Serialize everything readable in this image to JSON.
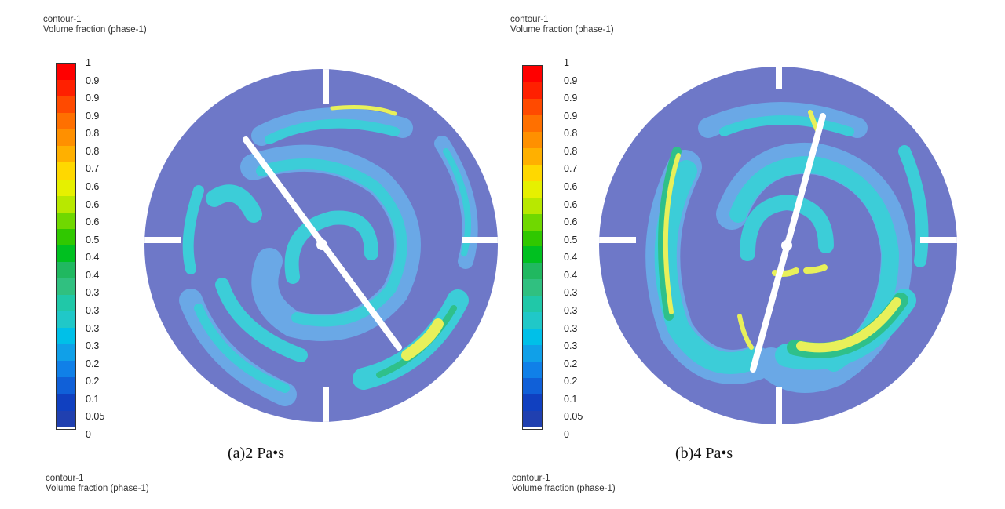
{
  "panels": [
    {
      "header_top": {
        "line1": "contour-1",
        "line2": "Volume fraction (phase-1)"
      },
      "header_bottom": {
        "line1": "contour-1",
        "line2": "Volume fraction (phase-1)"
      },
      "caption": "(a)2 Pa•s",
      "colorbar_labels": [
        "1",
        "0.9",
        "0.9",
        "0.9",
        "0.8",
        "0.8",
        "0.7",
        "0.6",
        "0.6",
        "0.6",
        "0.5",
        "0.4",
        "0.4",
        "0.3",
        "0.3",
        "0.3",
        "0.3",
        "0.2",
        "0.2",
        "0.1",
        "0.05",
        "0"
      ]
    },
    {
      "header_top": {
        "line1": "contour-1",
        "line2": "Volume fraction (phase-1)"
      },
      "header_bottom": {
        "line1": "contour-1",
        "line2": "Volume fraction (phase-1)"
      },
      "caption": "(b)4 Pa•s",
      "colorbar_labels": [
        "1",
        "0.9",
        "0.9",
        "0.9",
        "0.8",
        "0.8",
        "0.7",
        "0.6",
        "0.6",
        "0.6",
        "0.5",
        "0.4",
        "0.4",
        "0.3",
        "0.3",
        "0.3",
        "0.3",
        "0.2",
        "0.2",
        "0.1",
        "0.05",
        "0"
      ]
    }
  ],
  "colorbar_colors": [
    "#ff0000",
    "#ff2000",
    "#ff4a00",
    "#ff7000",
    "#ff9000",
    "#ffb000",
    "#ffd800",
    "#e6f000",
    "#b8e800",
    "#70d800",
    "#30c800",
    "#00c020",
    "#20b860",
    "#30c080",
    "#20c8a8",
    "#20c8c8",
    "#00c0e8",
    "#10a0e8",
    "#1080e8",
    "#1060d8",
    "#1040c0",
    "#2040b0"
  ],
  "colors": {
    "background_phase": "#6e78c8",
    "level_low": "#6aa8e6",
    "level_mid": "#3ccdd8",
    "level_green": "#2fc08a",
    "level_high": "#e8f05a",
    "shaft": "#ffffff"
  }
}
